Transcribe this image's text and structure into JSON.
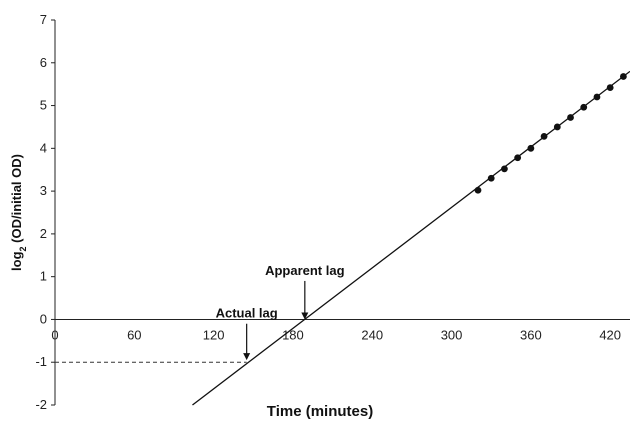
{
  "chart_data": {
    "type": "scatter",
    "xlabel": "Time (minutes)",
    "ylabel_base": "log",
    "ylabel_sub": "2",
    "ylabel_rest": " (OD/initial OD)",
    "xlim": [
      0,
      435
    ],
    "ylim": [
      -2,
      7
    ],
    "x_ticks": [
      "0",
      "60",
      "120",
      "180",
      "240",
      "300",
      "360",
      "420"
    ],
    "x_tick_values": [
      0,
      60,
      120,
      180,
      240,
      300,
      360,
      420
    ],
    "y_ticks": [
      "-2",
      "-1",
      "0",
      "1",
      "2",
      "3",
      "4",
      "5",
      "6",
      "7"
    ],
    "y_tick_values": [
      -2,
      -1,
      0,
      1,
      2,
      3,
      4,
      5,
      6,
      7
    ],
    "points": [
      {
        "x": 320,
        "y": 3.02
      },
      {
        "x": 330,
        "y": 3.3
      },
      {
        "x": 340,
        "y": 3.52
      },
      {
        "x": 350,
        "y": 3.78
      },
      {
        "x": 360,
        "y": 4.0
      },
      {
        "x": 370,
        "y": 4.28
      },
      {
        "x": 380,
        "y": 4.5
      },
      {
        "x": 390,
        "y": 4.72
      },
      {
        "x": 400,
        "y": 4.96
      },
      {
        "x": 410,
        "y": 5.2
      },
      {
        "x": 420,
        "y": 5.42
      },
      {
        "x": 430,
        "y": 5.68
      }
    ],
    "fit_line": {
      "x_start": 104,
      "y_start": -2.0,
      "x_end": 435,
      "y_end": 5.8
    },
    "lag_dashed": {
      "x_end": 145,
      "y": -1
    },
    "annotations": [
      {
        "text": "Apparent lag",
        "arrow_x": 189,
        "arrow_y_from": 0.9,
        "arrow_y_to": 0.0
      },
      {
        "text": "Actual lag",
        "arrow_x": 145,
        "arrow_y_from": -0.1,
        "arrow_y_to": -0.95
      }
    ]
  }
}
